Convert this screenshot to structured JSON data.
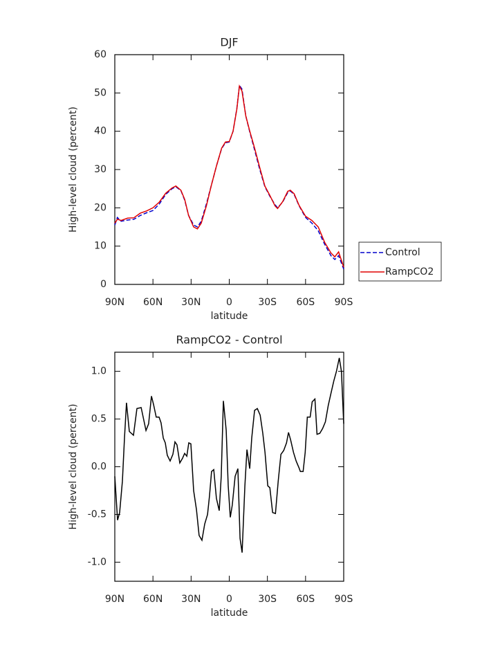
{
  "chart_data": [
    {
      "type": "line",
      "title": "DJF",
      "x_label": "latitude",
      "y_label": "High-level cloud (percent)",
      "x": [
        90,
        88,
        85,
        80,
        75,
        70,
        65,
        60,
        55,
        50,
        45,
        42,
        38,
        35,
        32,
        28,
        25,
        22,
        18,
        14,
        10,
        6,
        3,
        0,
        -3,
        -6,
        -8,
        -10,
        -13,
        -16,
        -20,
        -24,
        -28,
        -32,
        -36,
        -38,
        -42,
        -46,
        -48,
        -51,
        -55,
        -60,
        -65,
        -70,
        -75,
        -80,
        -83,
        -86,
        -90
      ],
      "series": [
        {
          "name": "Control",
          "color": "#0000cc",
          "dash": true,
          "values": [
            15.5,
            17.5,
            16.5,
            16.8,
            17,
            18,
            18.7,
            19.3,
            21,
            23.5,
            25,
            25.5,
            24.5,
            22,
            18,
            15.5,
            15,
            16.5,
            21,
            26,
            31,
            35.5,
            37,
            37.2,
            40,
            46,
            52,
            51,
            44,
            40,
            35,
            30,
            25.5,
            23,
            20.8,
            20,
            21.5,
            24,
            24.4,
            23.5,
            20.5,
            17.5,
            16,
            14,
            10.5,
            7.5,
            6.5,
            7.5,
            4
          ]
        },
        {
          "name": "RampCO2",
          "color": "#e00000",
          "dash": false,
          "values": [
            16,
            17,
            16.7,
            17.3,
            17.4,
            18.6,
            19.2,
            20,
            21.5,
            23.8,
            25.2,
            25.7,
            24.6,
            22.2,
            18,
            15,
            14.5,
            16,
            20.5,
            26,
            31,
            35.6,
            37.2,
            37.3,
            40,
            45.8,
            51.8,
            50.5,
            44,
            40.2,
            35.5,
            30.5,
            25.7,
            23.2,
            20.5,
            19.8,
            21.6,
            24.3,
            24.6,
            23.7,
            20.6,
            17.8,
            16.7,
            15,
            11,
            8.2,
            7.2,
            8.5,
            4.5
          ]
        }
      ],
      "xlim": [
        90,
        -90
      ],
      "xticks": [
        {
          "value": 90,
          "label": "90N"
        },
        {
          "value": 60,
          "label": "60N"
        },
        {
          "value": 30,
          "label": "30N"
        },
        0,
        {
          "value": -30,
          "label": "30S"
        },
        {
          "value": -60,
          "label": "60S"
        },
        {
          "value": -90,
          "label": "90S"
        }
      ],
      "ylim": [
        0,
        60
      ],
      "yticks": [
        0,
        10,
        20,
        30,
        40,
        50,
        60
      ],
      "legend": "right"
    },
    {
      "type": "line",
      "title": "RampCO2 - Control",
      "x_label": "latitude",
      "y_label": "High-level cloud (percent)",
      "x": [
        90,
        87.8,
        86.2,
        84,
        82.4,
        80.8,
        78.6,
        75.3,
        72.6,
        69.3,
        65.5,
        63.4,
        61.2,
        59.5,
        57.4,
        55.2,
        53.6,
        51.9,
        50.3,
        48.7,
        46.5,
        44.3,
        42.7,
        41.1,
        38.9,
        36.7,
        35.1,
        33.4,
        31.8,
        30.2,
        28,
        25.8,
        23.7,
        21.5,
        19.3,
        17.1,
        15.5,
        13.9,
        12.2,
        10.1,
        7.9,
        6.3,
        4.6,
        2.4,
        0.8,
        -0.8,
        -2.4,
        -4.6,
        -6.8,
        -8.5,
        -10.1,
        -12.3,
        -13.9,
        -16.1,
        -17.7,
        -19.9,
        -22.1,
        -24.3,
        -26.4,
        -28.1,
        -30.3,
        -31.9,
        -34.1,
        -36.3,
        -38.5,
        -40.6,
        -42.8,
        -45,
        -46.6,
        -48.3,
        -50.5,
        -52.6,
        -54.8,
        -55.9,
        -58.1,
        -59.7,
        -61.4,
        -63.6,
        -65.2,
        -67.4,
        -69,
        -71.2,
        -73.4,
        -75.6,
        -77.8,
        -80,
        -82.2,
        -84.3,
        -86.5,
        -88.2,
        -90
      ],
      "values": [
        -0.1,
        -0.56,
        -0.48,
        -0.15,
        0.3,
        0.67,
        0.37,
        0.33,
        0.61,
        0.62,
        0.38,
        0.45,
        0.74,
        0.65,
        0.52,
        0.52,
        0.46,
        0.3,
        0.25,
        0.12,
        0.06,
        0.13,
        0.26,
        0.23,
        0.04,
        0.09,
        0.14,
        0.11,
        0.25,
        0.24,
        -0.25,
        -0.45,
        -0.72,
        -0.77,
        -0.6,
        -0.5,
        -0.3,
        -0.05,
        -0.03,
        -0.33,
        -0.46,
        -0.1,
        0.69,
        0.38,
        -0.2,
        -0.53,
        -0.4,
        -0.1,
        -0.02,
        -0.75,
        -0.9,
        -0.2,
        0.18,
        -0.02,
        0.3,
        0.59,
        0.61,
        0.54,
        0.35,
        0.15,
        -0.2,
        -0.22,
        -0.48,
        -0.49,
        -0.15,
        0.13,
        0.17,
        0.25,
        0.36,
        0.28,
        0.15,
        0.06,
        -0.01,
        -0.05,
        -0.05,
        0.15,
        0.52,
        0.52,
        0.68,
        0.71,
        0.34,
        0.35,
        0.4,
        0.47,
        0.64,
        0.77,
        0.9,
        1.0,
        1.14,
        1.0,
        0.45
      ],
      "color": "#000000",
      "xlim": [
        90,
        -90
      ],
      "xticks": [
        {
          "value": 90,
          "label": "90N"
        },
        {
          "value": 60,
          "label": "60N"
        },
        {
          "value": 30,
          "label": "30N"
        },
        0,
        {
          "value": -30,
          "label": "30S"
        },
        {
          "value": -60,
          "label": "60S"
        },
        {
          "value": -90,
          "label": "90S"
        }
      ],
      "ylim": [
        -1.2,
        1.2
      ],
      "yticks": [
        {
          "value": -1,
          "label": "-1.0"
        },
        {
          "value": -0.5,
          "label": "-0.5"
        },
        {
          "value": 0,
          "label": "0.0"
        },
        {
          "value": 0.5,
          "label": "0.5"
        },
        {
          "value": 1,
          "label": "1.0"
        }
      ]
    }
  ]
}
